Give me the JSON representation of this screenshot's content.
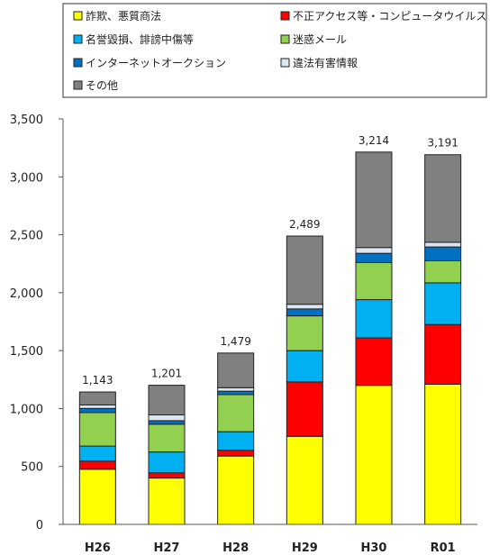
{
  "chart_data": {
    "type": "bar",
    "stacked": true,
    "categories": [
      "H26",
      "H27",
      "H28",
      "H29",
      "H30",
      "R01"
    ],
    "series": [
      {
        "name": "詐欺、悪質商法",
        "color": "#ffff00",
        "values": [
          476,
          400,
          590,
          760,
          1200,
          1210
        ]
      },
      {
        "name": "不正アクセス等・コンピュータウイルス",
        "color": "#ff0000",
        "values": [
          70,
          45,
          50,
          470,
          410,
          515
        ]
      },
      {
        "name": "名誉毀損、誹謗中傷等",
        "color": "#00b0f0",
        "values": [
          130,
          180,
          160,
          270,
          330,
          360
        ]
      },
      {
        "name": "迷惑メール",
        "color": "#92d050",
        "values": [
          290,
          240,
          320,
          300,
          320,
          190
        ]
      },
      {
        "name": "インターネットオークション",
        "color": "#0070c0",
        "values": [
          35,
          30,
          30,
          60,
          80,
          120
        ]
      },
      {
        "name": "違法有害情報",
        "color": "#dce6f1",
        "values": [
          30,
          50,
          30,
          40,
          50,
          40
        ]
      },
      {
        "name": "その他",
        "color": "#808080",
        "values": [
          112,
          256,
          299,
          589,
          824,
          756
        ]
      }
    ],
    "totals": [
      "1,143",
      "1,201",
      "1,479",
      "2,489",
      "3,214",
      "3,191"
    ],
    "yticks": [
      "0",
      "500",
      "1,000",
      "1,500",
      "2,000",
      "2,500",
      "3,000",
      "3,500"
    ],
    "ylim": [
      0,
      3500
    ],
    "legend_position": "top",
    "grid": false
  }
}
